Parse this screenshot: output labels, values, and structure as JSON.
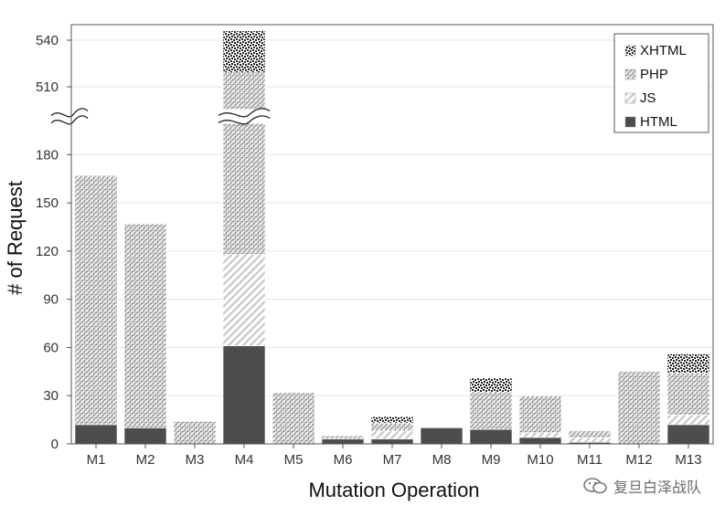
{
  "chart_data": {
    "type": "bar",
    "stacked": true,
    "xlabel": "Mutation Operation",
    "ylabel": "# of Request",
    "categories": [
      "M1",
      "M2",
      "M3",
      "M4",
      "M5",
      "M6",
      "M7",
      "M8",
      "M9",
      "M10",
      "M11",
      "M12",
      "M13"
    ],
    "series": [
      {
        "name": "HTML",
        "pattern": "solid",
        "color": "#4d4d4d",
        "values": [
          12,
          10,
          0,
          61,
          0,
          3,
          3,
          10,
          9,
          4,
          1,
          0,
          12
        ]
      },
      {
        "name": "JS",
        "pattern": "diagonal",
        "color": "#d0d0d0",
        "values": [
          0,
          0,
          0,
          57,
          0,
          0,
          5,
          0,
          0,
          3,
          3,
          0,
          6
        ]
      },
      {
        "name": "PHP",
        "pattern": "dense-hatch",
        "color": "#9a9a9a",
        "values": [
          155,
          127,
          14,
          401,
          32,
          2,
          5,
          0,
          23,
          23,
          4,
          45,
          26
        ]
      },
      {
        "name": "XHTML",
        "pattern": "checker",
        "color": "#333333",
        "values": [
          0,
          0,
          0,
          27,
          0,
          0,
          4,
          0,
          9,
          0,
          0,
          0,
          12
        ]
      }
    ],
    "yticks": [
      0,
      30,
      60,
      90,
      120,
      150,
      180,
      510,
      540
    ],
    "ylim": [
      0,
      550
    ],
    "y_break": [
      195,
      500
    ],
    "grid": true,
    "legend_position": "top-right",
    "legend_order": [
      "XHTML",
      "PHP",
      "JS",
      "HTML"
    ]
  },
  "watermark": {
    "text": "复旦白泽战队",
    "icon": "wechat-icon"
  }
}
